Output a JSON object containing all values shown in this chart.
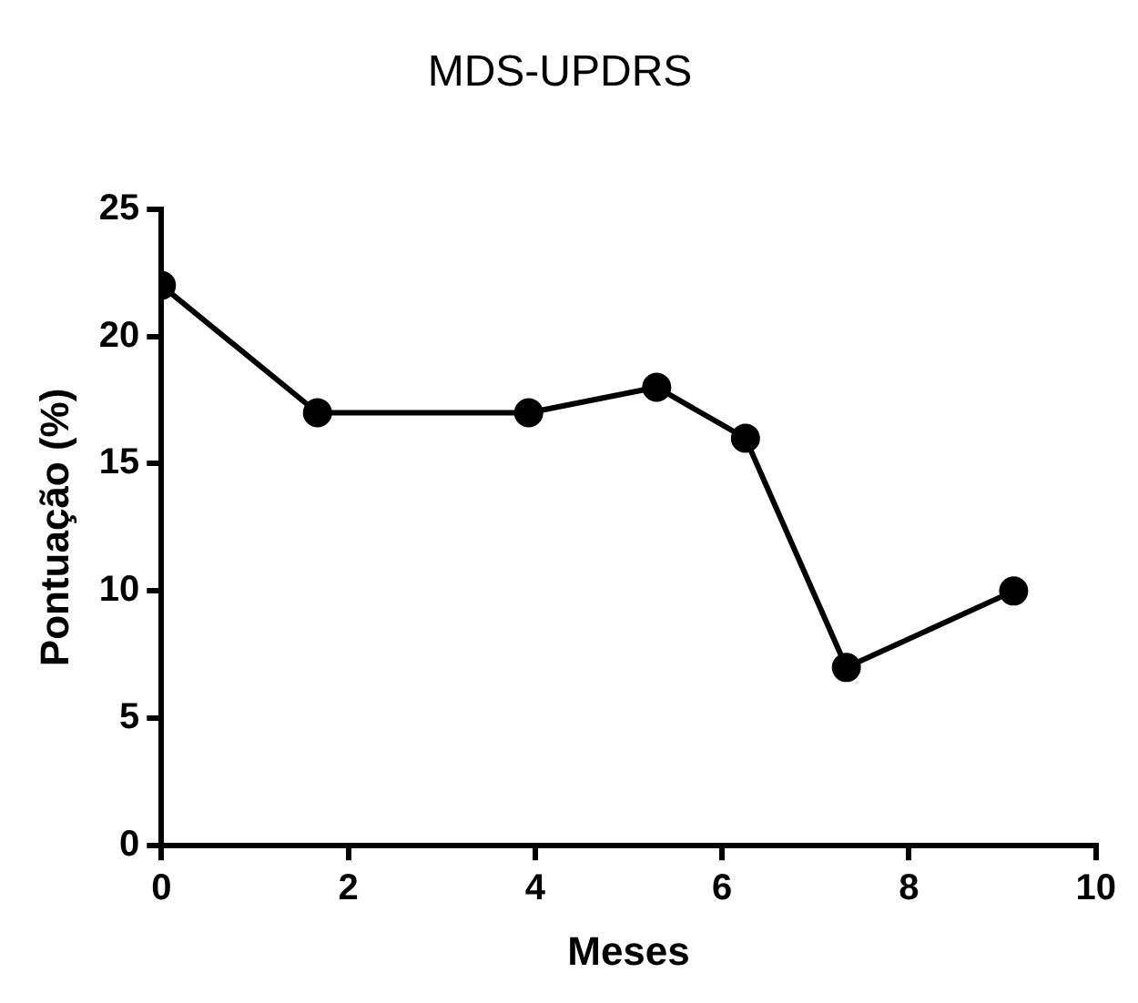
{
  "chart_data": {
    "type": "line",
    "title": "MDS-UPDRS",
    "xlabel": "Meses",
    "ylabel": "Pontuação (%)",
    "x": [
      0,
      1.67,
      3.93,
      5.3,
      6.25,
      7.33,
      9.12
    ],
    "series": [
      {
        "color": "#000000",
        "values": [
          22,
          17,
          17,
          18,
          16,
          7,
          10
        ]
      }
    ],
    "xlim": [
      0,
      10
    ],
    "xticks": [
      0,
      2,
      4,
      6,
      8,
      10
    ],
    "ylim": [
      0,
      25
    ],
    "yticks": [
      0,
      5,
      10,
      15,
      20,
      25
    ],
    "grid": false,
    "legend": false,
    "marker": "circle",
    "line_style": "solid"
  }
}
